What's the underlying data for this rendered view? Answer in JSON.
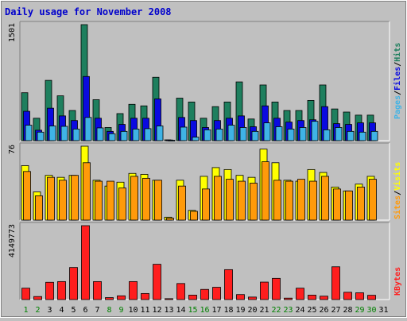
{
  "chart_data": {
    "type": "bar",
    "title": "Daily usage for November 2008",
    "days": [
      "1",
      "2",
      "3",
      "4",
      "5",
      "6",
      "7",
      "8",
      "9",
      "10",
      "11",
      "12",
      "13",
      "14",
      "15",
      "16",
      "17",
      "18",
      "19",
      "20",
      "21",
      "22",
      "23",
      "24",
      "25",
      "26",
      "27",
      "28",
      "29",
      "30",
      "31"
    ],
    "weekend_days": [
      "1",
      "2",
      "8",
      "9",
      "15",
      "16",
      "22",
      "23",
      "29",
      "30"
    ],
    "panels": [
      {
        "id": "hits",
        "max_label": "1501",
        "ylim": [
          0,
          1501
        ],
        "series": [
          {
            "name": "Hits",
            "color": "#1e7f5e",
            "values": [
              620,
              290,
              780,
              580,
              390,
              1501,
              530,
              170,
              350,
              470,
              450,
              820,
              10,
              550,
              500,
              290,
              440,
              500,
              760,
              280,
              720,
              500,
              390,
              390,
              520,
              720,
              410,
              370,
              330,
              330,
              0
            ]
          },
          {
            "name": "Files",
            "color": "#0a0ae0",
            "values": [
              380,
              135,
              420,
              320,
              260,
              830,
              290,
              120,
              210,
              290,
              290,
              540,
              8,
              300,
              260,
              170,
              260,
              290,
              320,
              180,
              450,
              290,
              240,
              260,
              270,
              440,
              220,
              210,
              230,
              230,
              0
            ]
          },
          {
            "name": "Pages",
            "color": "#3fb3e6",
            "values": [
              200,
              110,
              190,
              185,
              150,
              300,
              165,
              90,
              120,
              150,
              155,
              190,
              5,
              175,
              45,
              140,
              150,
              200,
              170,
              120,
              230,
              180,
              150,
              170,
              250,
              140,
              170,
              120,
              110,
              120,
              0
            ]
          }
        ]
      },
      {
        "id": "visits",
        "max_label": "76",
        "ylim": [
          0,
          76
        ],
        "series": [
          {
            "name": "Visits",
            "color": "#ffff00",
            "values": [
              56,
              29,
              46,
              44,
              46,
              76,
              41,
              35,
              39,
              48,
              47,
              41,
              3,
              41,
              10,
              45,
              54,
              52,
              46,
              44,
              73,
              59,
              41,
              40,
              52,
              49,
              34,
              30,
              37,
              45,
              0
            ]
          },
          {
            "name": "Sites",
            "color": "#ff9a0a",
            "values": [
              50,
              25,
              44,
              41,
              46,
              59,
              40,
              40,
              33,
              45,
              43,
              41,
              2,
              35,
              9,
              32,
              45,
              42,
              40,
              38,
              60,
              41,
              40,
              42,
              40,
              45,
              32,
              30,
              34,
              42,
              0
            ]
          }
        ]
      },
      {
        "id": "kbytes",
        "max_label": "4149773",
        "ylim": [
          0,
          4149773
        ],
        "series": [
          {
            "name": "KBytes",
            "color": "#ff1e1e",
            "values": [
              640000,
              170000,
              970000,
              1010000,
              1800000,
              4149773,
              1010000,
              110000,
              210000,
              1010000,
              340000,
              1980000,
              50000,
              900000,
              250000,
              570000,
              690000,
              1680000,
              280000,
              140000,
              980000,
              1190000,
              80000,
              640000,
              250000,
              190000,
              1840000,
              410000,
              380000,
              240000,
              0
            ]
          }
        ]
      }
    ],
    "legend": {
      "hits_label": "Hits",
      "files_label": "Files",
      "pages_label": "Pages",
      "visits_label": "Visits",
      "sites_label": "Sites",
      "kbytes_label": "KBytes",
      "sep": "/"
    }
  }
}
